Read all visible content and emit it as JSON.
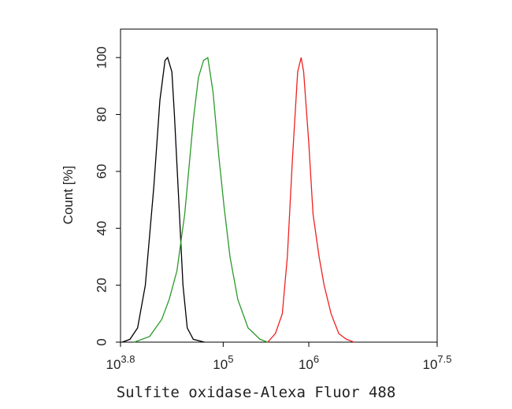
{
  "chart_data": {
    "type": "line",
    "xscale": "log",
    "xlabel": "Sulfite oxidase-Alexa Fluor 488",
    "ylabel": "Count [%]",
    "xlim": [
      6309.57,
      31622776.6
    ],
    "xticks": [
      {
        "value": 6309.57,
        "label": "10",
        "superscript": "3.8"
      },
      {
        "value": 100000,
        "label": "10",
        "superscript": "5"
      },
      {
        "value": 1000000,
        "label": "10",
        "superscript": "6"
      },
      {
        "value": 31622776.6,
        "label": "10",
        "superscript": "7.5"
      }
    ],
    "ylim": [
      0,
      110
    ],
    "yticks": [
      0,
      20,
      40,
      60,
      80,
      100
    ],
    "series": [
      {
        "color": "#000000",
        "x": [
          6600,
          8130,
          10000,
          12300,
          15500,
          18200,
          20900,
          22400,
          25100,
          26900,
          30200,
          33900,
          38000,
          44700,
          60300
        ],
        "values": [
          0,
          1,
          5,
          20,
          55,
          85,
          99,
          100,
          95,
          80,
          50,
          20,
          5,
          1,
          0
        ]
      },
      {
        "color": "#2a9a2a",
        "x": [
          9120,
          13800,
          19100,
          23400,
          28800,
          35500,
          44700,
          51300,
          58900,
          66100,
          75900,
          89100,
          102000,
          120000,
          148000,
          195000,
          269000,
          331000
        ],
        "values": [
          0,
          2,
          8,
          15,
          25,
          45,
          78,
          93,
          99,
          100,
          88,
          65,
          48,
          30,
          15,
          5,
          1,
          0
        ]
      },
      {
        "color": "#ee2020",
        "x": [
          331000,
          407000,
          490000,
          562000,
          646000,
          741000,
          813000,
          871000,
          1000000,
          1120000,
          1320000,
          1510000,
          1820000,
          2240000,
          2750000,
          3390000
        ],
        "values": [
          0,
          3,
          10,
          30,
          65,
          95,
          100,
          95,
          70,
          45,
          30,
          20,
          10,
          3,
          1,
          0
        ]
      }
    ]
  }
}
